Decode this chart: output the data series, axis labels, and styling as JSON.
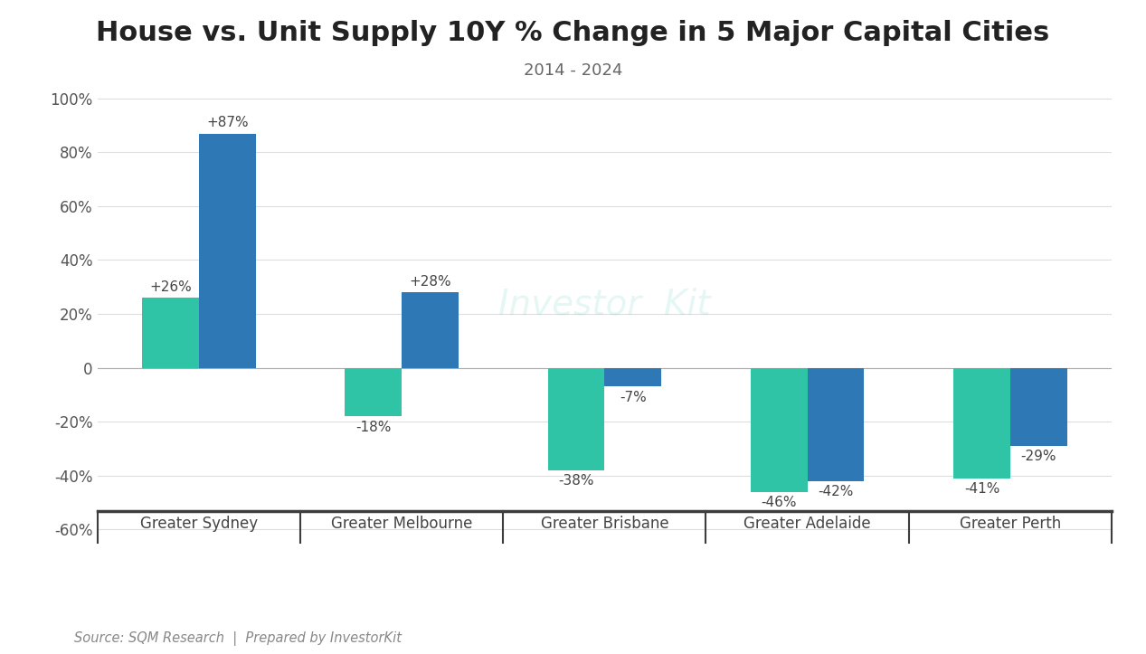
{
  "title": "House vs. Unit Supply 10Y % Change in 5 Major Capital Cities",
  "subtitle": "2014 - 2024",
  "categories": [
    "Greater Sydney",
    "Greater Melbourne",
    "Greater Brisbane",
    "Greater Adelaide",
    "Greater Perth"
  ],
  "house_values": [
    26,
    -18,
    -38,
    -46,
    -41
  ],
  "unit_values": [
    87,
    28,
    -7,
    -42,
    -29
  ],
  "house_labels": [
    "+26%",
    "-18%",
    "-38%",
    "-46%",
    "-41%"
  ],
  "unit_labels": [
    "+87%",
    "+28%",
    "-7%",
    "-42%",
    "-29%"
  ],
  "house_color": "#2EC4A5",
  "unit_color": "#2E78B5",
  "background_color": "#FFFFFF",
  "ylim": [
    -65,
    105
  ],
  "yticks": [
    -60,
    -40,
    -20,
    0,
    20,
    40,
    60,
    80,
    100
  ],
  "ytick_labels": [
    "-60%",
    "-40%",
    "-20%",
    "0",
    "20%",
    "40%",
    "60%",
    "80%",
    "100%"
  ],
  "watermark_text": "Investor  Kit",
  "watermark_icon": "□",
  "source_text": "Source: SQM Research  |  Prepared by InvestorKit",
  "bar_width": 0.28,
  "title_fontsize": 22,
  "subtitle_fontsize": 13,
  "label_fontsize": 11,
  "tick_fontsize": 12,
  "category_fontsize": 12,
  "source_fontsize": 10.5
}
